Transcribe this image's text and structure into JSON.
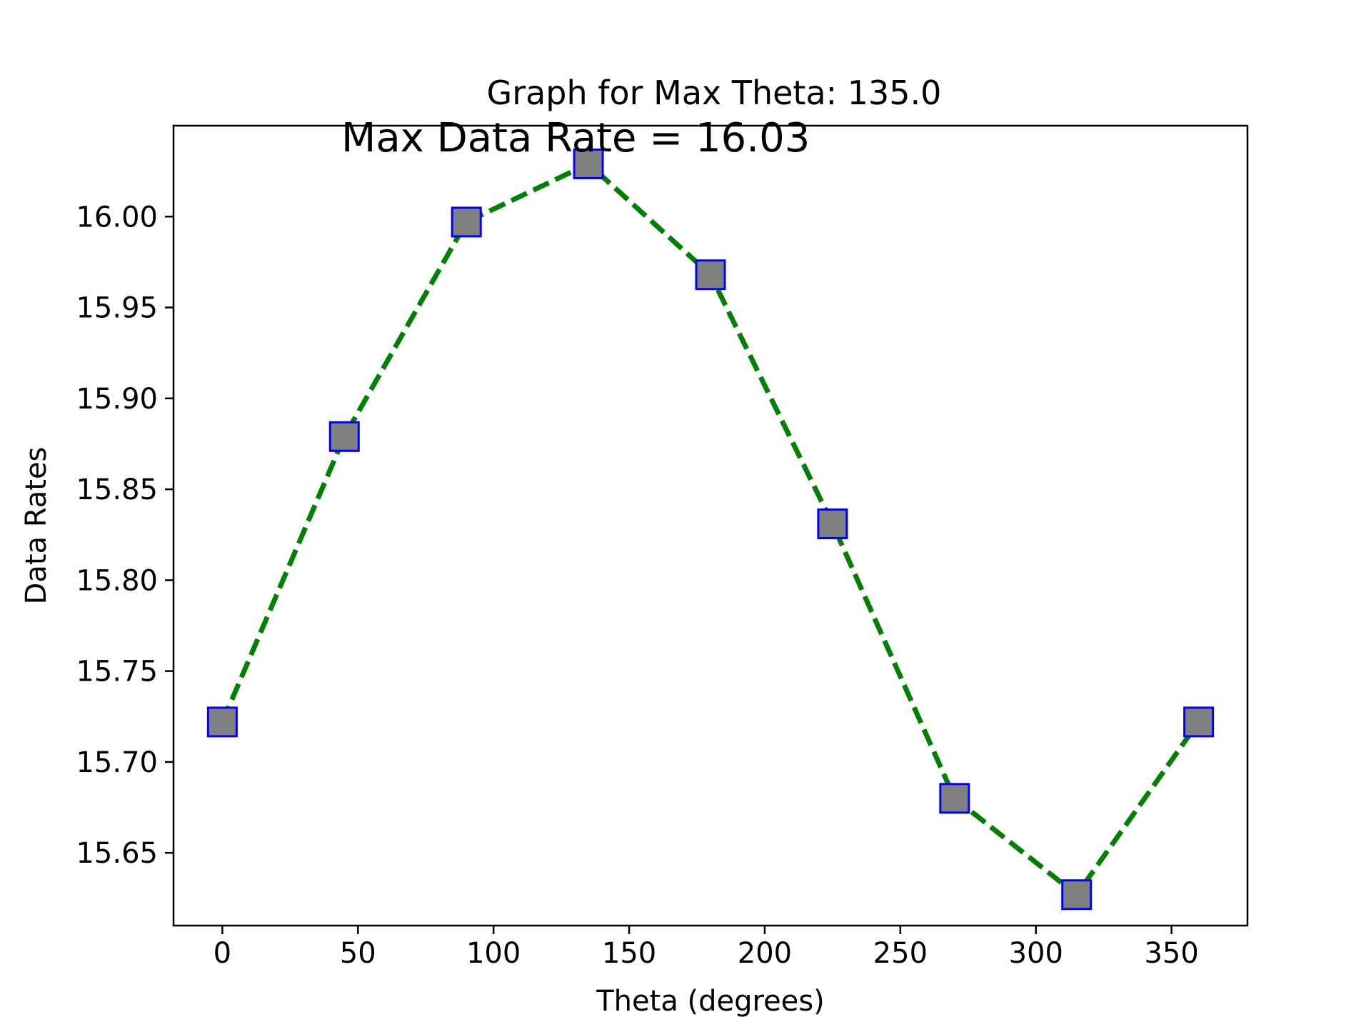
{
  "chart_data": {
    "type": "line",
    "title": "Graph for Max Theta: 135.0",
    "annotation": "Max Data Rate = 16.03",
    "xlabel": "Theta (degrees)",
    "ylabel": "Data Rates",
    "xlim": [
      -18,
      378
    ],
    "ylim": [
      15.61,
      16.05
    ],
    "xticks": [
      0,
      50,
      100,
      150,
      200,
      250,
      300,
      350
    ],
    "yticks": [
      15.65,
      15.7,
      15.75,
      15.8,
      15.85,
      15.9,
      15.95,
      16.0
    ],
    "xtick_labels": [
      "0",
      "50",
      "100",
      "150",
      "200",
      "250",
      "300",
      "350"
    ],
    "ytick_labels": [
      "15.65",
      "15.70",
      "15.75",
      "15.80",
      "15.85",
      "15.90",
      "15.95",
      "16.00"
    ],
    "grid": false,
    "series": [
      {
        "x": [
          0,
          45,
          90,
          135,
          180,
          225,
          270,
          315,
          360
        ],
        "y": [
          15.722,
          15.879,
          15.997,
          16.029,
          15.968,
          15.831,
          15.68,
          15.627,
          15.722
        ],
        "line_color": "#008000",
        "line_style": "dashed",
        "marker": "square",
        "marker_face_color": "#808080",
        "marker_edge_color": "#0000ff"
      }
    ]
  }
}
